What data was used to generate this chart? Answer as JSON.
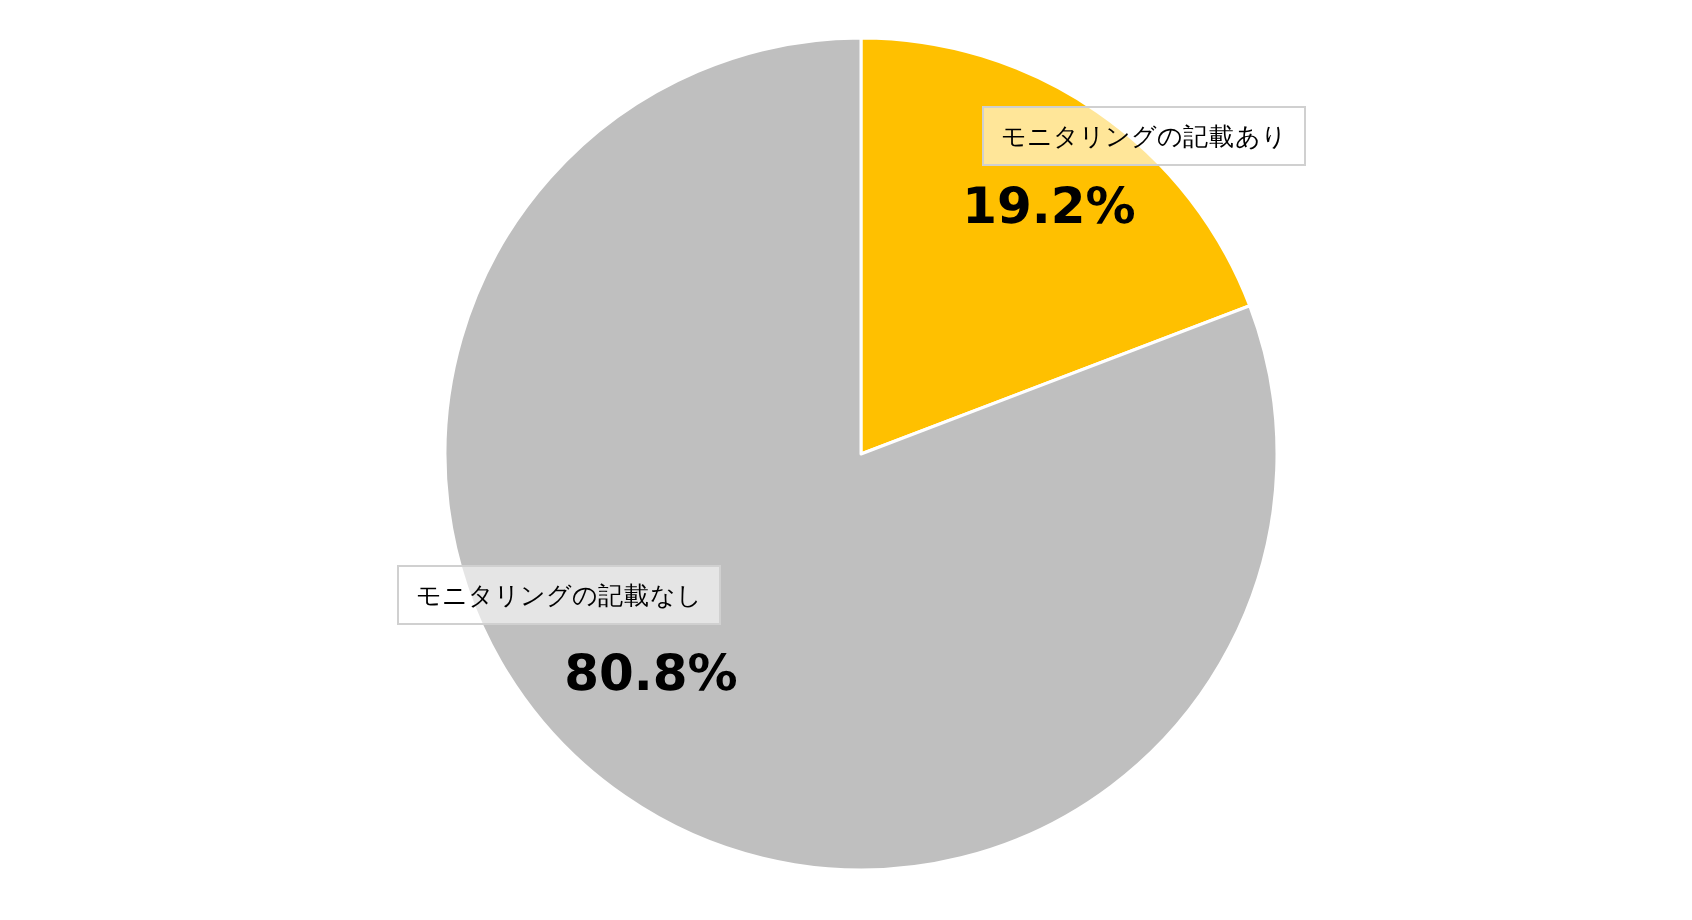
{
  "chart_data": {
    "type": "pie",
    "categories": [
      "モニタリングの記載あり",
      "モニタリングの記載なし"
    ],
    "values": [
      19.2,
      80.8
    ],
    "colors": [
      "#ffc000",
      "#bfbfbf"
    ],
    "value_labels": [
      "19.2%",
      "80.8%"
    ]
  }
}
